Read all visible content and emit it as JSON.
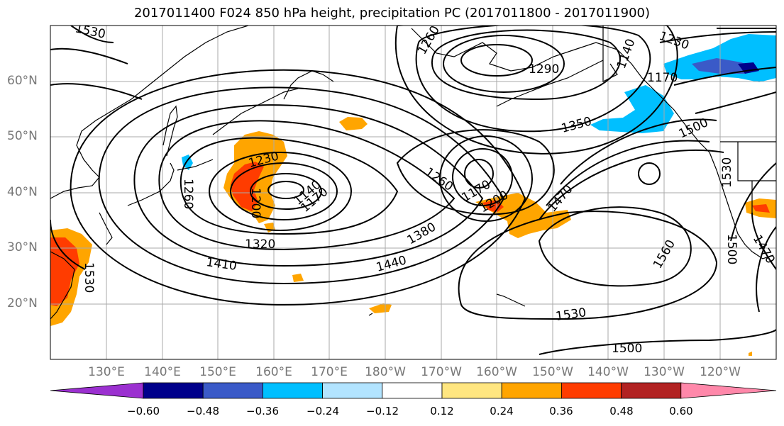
{
  "title": "2017011400 F024 850 hPa height, precipitation PC (2017011800 - 2017011900)",
  "lat_labels": [
    "60°N",
    "50°N",
    "40°N",
    "30°N",
    "20°N"
  ],
  "lon_labels": [
    "130°E",
    "140°E",
    "150°E",
    "160°E",
    "170°E",
    "180°W",
    "170°W",
    "160°W",
    "150°W",
    "140°W",
    "130°W",
    "120°W"
  ],
  "contour_labels": [
    "1530",
    "1260",
    "1230",
    "1170",
    "1140",
    "1290",
    "1350",
    "1500",
    "1530",
    "1230",
    "1200",
    "1260",
    "1140",
    "1170",
    "1260",
    "1170",
    "1200",
    "1470",
    "1320",
    "1410",
    "1380",
    "1440",
    "1560",
    "1500",
    "1530",
    "1500",
    "1470",
    "1530"
  ],
  "colorbar": {
    "labels": [
      "−0.60",
      "−0.48",
      "−0.36",
      "−0.24",
      "−0.12",
      "0.12",
      "0.24",
      "0.36",
      "0.48",
      "0.60"
    ],
    "colors": [
      "#9b30d0",
      "#00008b",
      "#3a5ac8",
      "#00bfff",
      "#b2e4ff",
      "#ffffff",
      "#ffe680",
      "#ffa500",
      "#ff3c00",
      "#b22222",
      "#ff88aa"
    ]
  }
}
